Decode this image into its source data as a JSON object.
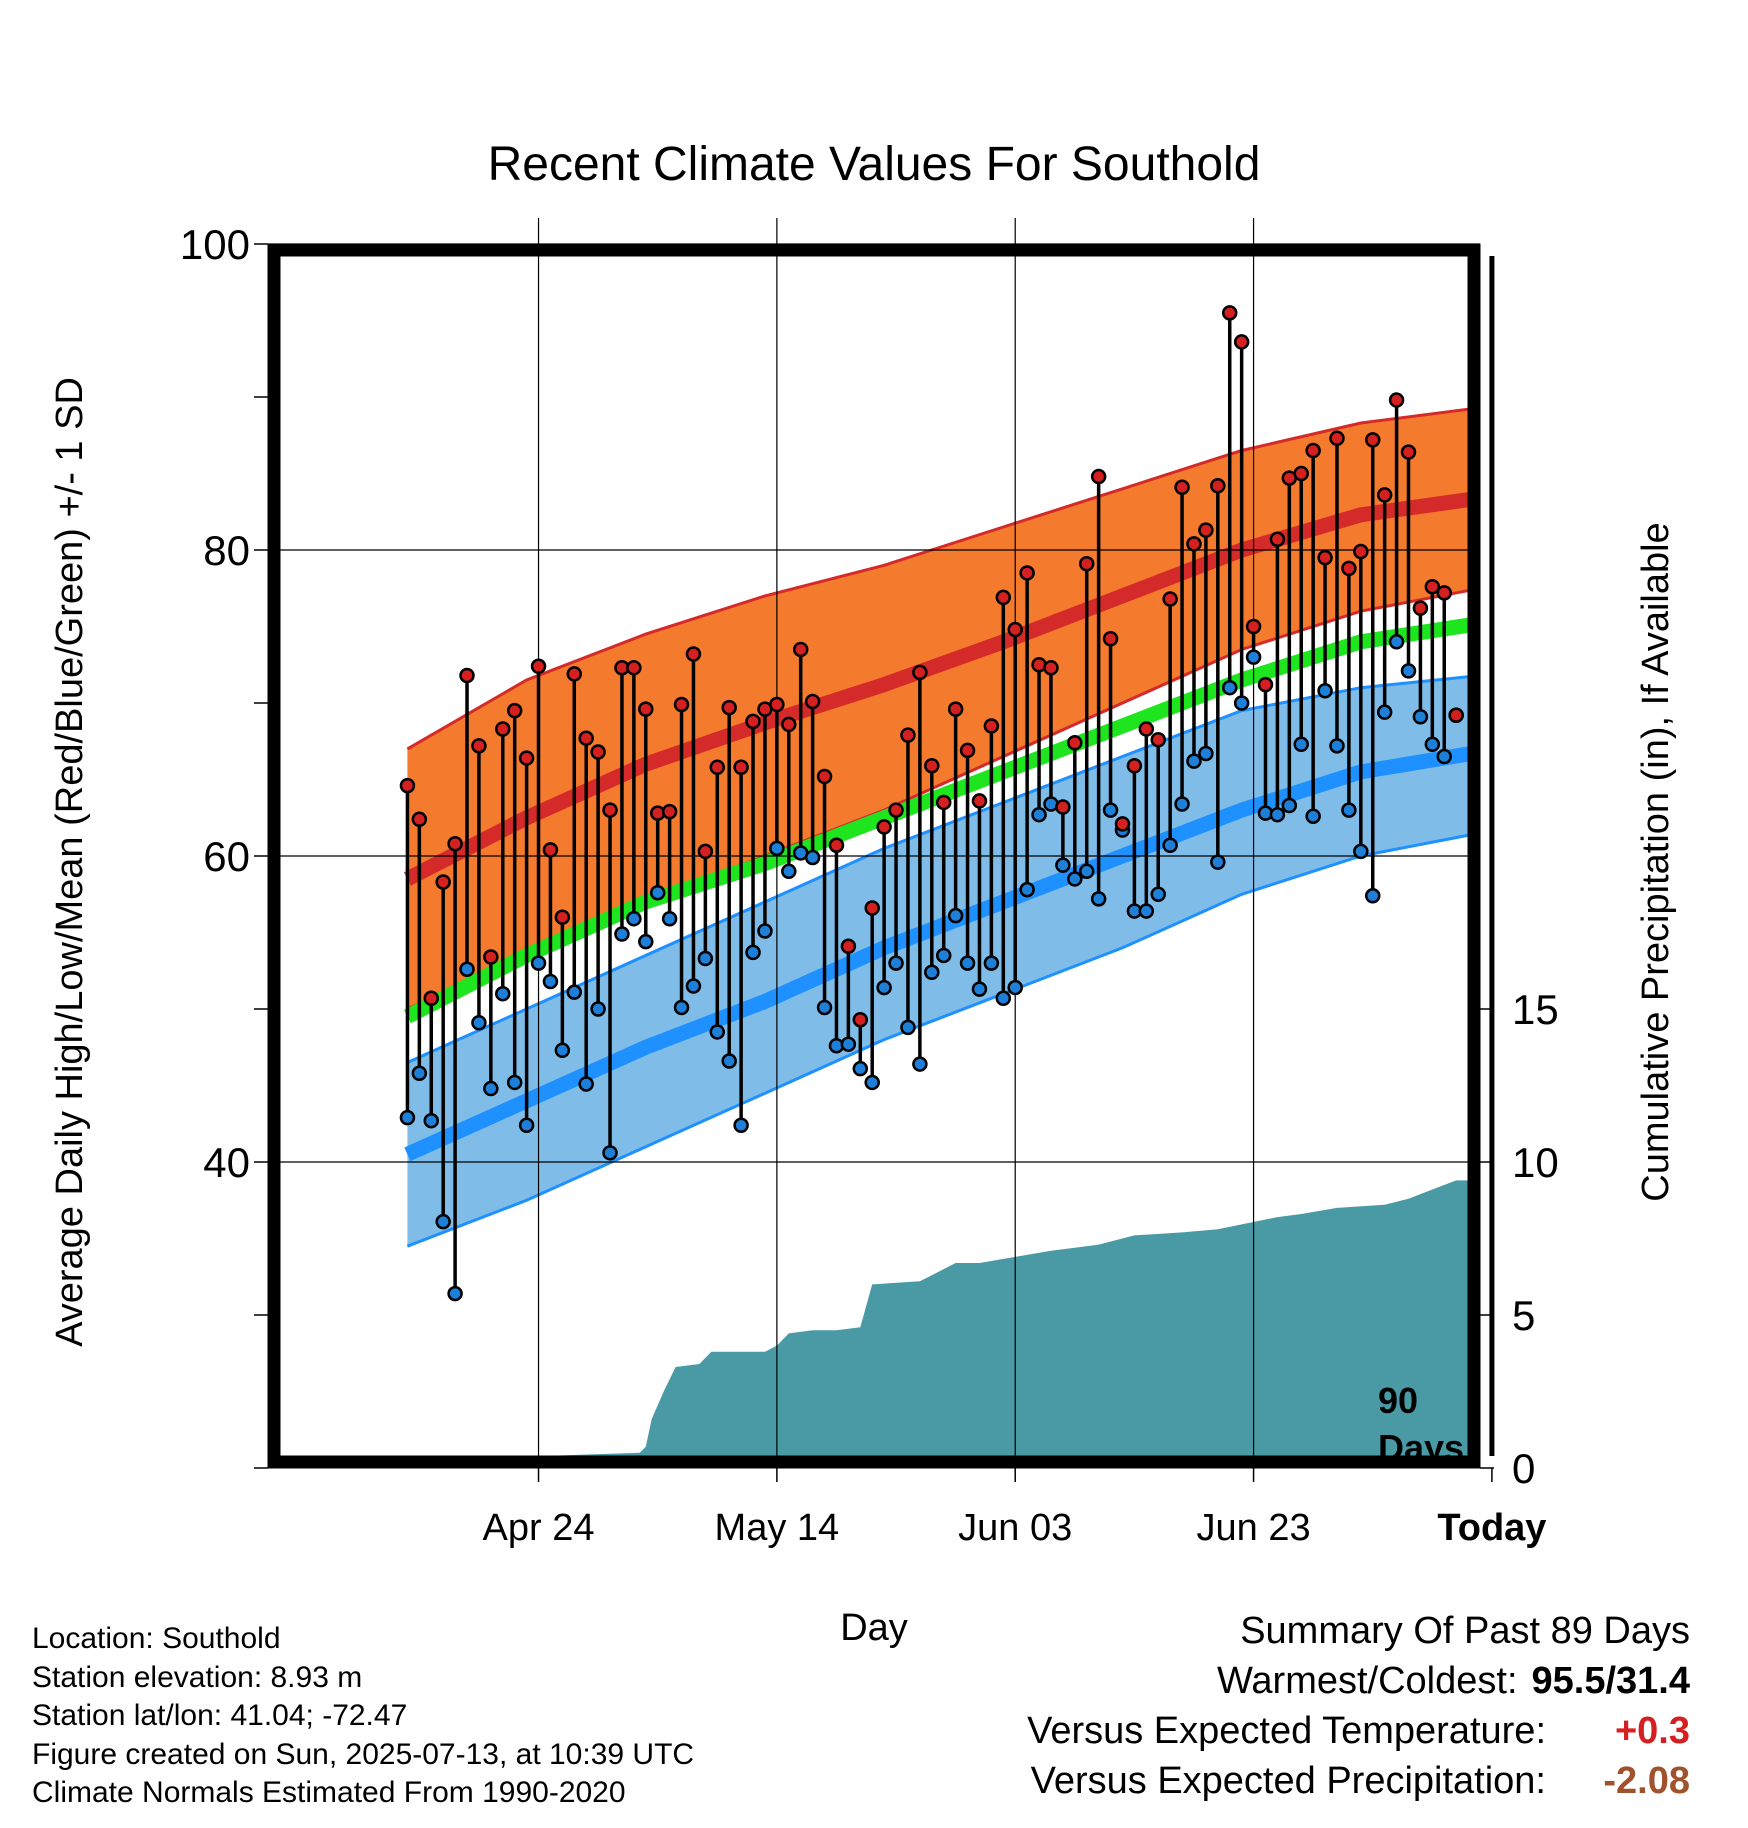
{
  "title": "Recent Climate Values For Southold",
  "y_label": "Average Daily High/Low/Mean (Red/Blue/Green) +/- 1 SD",
  "y2_label": "Cumulative Precipitation (in), If Available",
  "x_label": "Day",
  "today_marker": {
    "line1": "90",
    "line2": "Days"
  },
  "info": {
    "location": "Location: Southold",
    "elevation": "Station elevation: 8.93 m",
    "latlon": "Station lat/lon: 41.04; -72.47",
    "created": "Figure created on Sun, 2025-07-13, at 10:39 UTC",
    "normals": "Climate Normals Estimated From 1990-2020"
  },
  "summary": {
    "heading": "Summary Of Past 89 Days",
    "warm_label": "Warmest/Coldest:",
    "warm_value": "95.5/31.4",
    "temp_label": "Versus Expected Temperature:",
    "temp_value": "+0.3",
    "precip_label": "Versus Expected Precipitation:",
    "precip_value": "-2.08"
  },
  "colors": {
    "high_band": "#f47a2e",
    "high_mean": "#d42a2a",
    "low_band": "#7fbde8",
    "low_mean": "#1e90ff",
    "mean_line": "#1ee51e",
    "precip": "#4a9aa5",
    "high_dot": "#d42020",
    "low_dot": "#1e7fd8"
  },
  "chart_data": {
    "type": "line",
    "x_range": [
      -11.7,
      90
    ],
    "ylim": [
      20,
      100
    ],
    "y2lim": [
      0,
      40
    ],
    "y_ticks": [
      "100",
      "80",
      "60",
      "40"
    ],
    "y2_ticks": [
      "0",
      "5",
      "10",
      "15"
    ],
    "x_ticks": [
      {
        "x": 11,
        "label": "Apr 24"
      },
      {
        "x": 31,
        "label": "May 14"
      },
      {
        "x": 51,
        "label": "Jun 03"
      },
      {
        "x": 71,
        "label": "Jun 23"
      },
      {
        "x": 91,
        "label": "Today"
      }
    ],
    "normals": {
      "x": [
        0,
        10,
        20,
        30,
        40,
        50,
        60,
        70,
        80,
        90,
        99
      ],
      "high_mean": [
        58.5,
        62.5,
        66.0,
        68.7,
        71.2,
        74.0,
        77.0,
        80.0,
        82.3,
        83.4,
        83.4
      ],
      "high_upper": [
        67.0,
        71.5,
        74.5,
        77.0,
        79.0,
        81.5,
        84.0,
        86.5,
        88.3,
        89.3,
        89.3
      ],
      "high_lower": [
        50.0,
        53.5,
        57.0,
        60.0,
        63.0,
        66.5,
        70.0,
        73.5,
        76.0,
        77.5,
        77.8
      ],
      "mean": [
        49.5,
        53.5,
        57.0,
        59.5,
        62.5,
        65.5,
        68.5,
        71.5,
        74.0,
        75.2,
        75.3
      ],
      "low_mean": [
        40.5,
        44.0,
        47.5,
        50.5,
        54.0,
        57.0,
        60.0,
        63.0,
        65.5,
        66.8,
        67.0
      ],
      "low_upper": [
        46.5,
        50.0,
        53.5,
        57.0,
        60.5,
        63.5,
        66.5,
        69.5,
        71.0,
        71.8,
        72.0
      ],
      "low_lower": [
        34.5,
        37.5,
        41.0,
        44.5,
        48.0,
        51.0,
        54.0,
        57.5,
        60.0,
        61.5,
        62.2
      ]
    },
    "daily": {
      "x": [
        0,
        1,
        2,
        3,
        4,
        5,
        6,
        7,
        8,
        9,
        10,
        11,
        12,
        13,
        14,
        15,
        16,
        17,
        18,
        19,
        20,
        21,
        22,
        23,
        24,
        25,
        26,
        27,
        28,
        29,
        30,
        31,
        32,
        33,
        34,
        35,
        36,
        37,
        38,
        39,
        40,
        41,
        42,
        43,
        44,
        45,
        46,
        47,
        48,
        49,
        50,
        51,
        52,
        53,
        54,
        55,
        56,
        57,
        58,
        59,
        60,
        61,
        62,
        63,
        64,
        65,
        66,
        67,
        68,
        69,
        70,
        71,
        72,
        73,
        74,
        75,
        76,
        77,
        78,
        79,
        80,
        81,
        82,
        83,
        84,
        85,
        86,
        87,
        88
      ],
      "high": [
        64.6,
        62.4,
        50.7,
        58.3,
        60.8,
        71.8,
        67.2,
        53.4,
        68.3,
        69.5,
        66.4,
        72.4,
        60.4,
        56.0,
        71.9,
        67.7,
        66.8,
        63.0,
        72.3,
        72.3,
        69.6,
        62.8,
        62.9,
        69.9,
        73.2,
        60.3,
        65.8,
        69.7,
        65.8,
        68.8,
        69.6,
        69.9,
        68.6,
        73.5,
        70.1,
        65.2,
        60.7,
        54.1,
        49.3,
        56.6,
        61.9,
        63.0,
        67.9,
        72.0,
        65.9,
        63.5,
        69.6,
        66.9,
        63.6,
        68.5,
        76.9,
        74.8,
        78.5,
        72.5,
        72.3,
        63.2,
        67.4,
        79.1,
        84.8,
        74.2,
        62.1,
        65.9,
        68.3,
        67.6,
        76.8,
        84.1,
        80.4,
        81.3,
        84.2,
        95.5,
        93.6,
        75.0,
        71.2,
        80.7,
        84.7,
        85.0,
        86.5,
        79.5,
        87.3,
        78.8,
        79.9,
        87.2,
        83.6,
        89.8,
        86.4,
        76.2,
        77.6,
        77.2,
        69.2
      ],
      "low": [
        42.9,
        45.8,
        42.7,
        36.1,
        31.4,
        52.6,
        49.1,
        44.8,
        51.0,
        45.2,
        42.4,
        53.0,
        51.8,
        47.3,
        51.1,
        45.1,
        50.0,
        40.6,
        54.9,
        55.9,
        54.4,
        57.6,
        55.9,
        50.1,
        51.5,
        53.3,
        48.5,
        46.6,
        42.4,
        53.7,
        55.1,
        60.5,
        59.0,
        60.2,
        59.9,
        50.1,
        47.6,
        47.7,
        46.1,
        45.2,
        51.4,
        53.0,
        48.8,
        46.4,
        52.4,
        53.5,
        56.1,
        53.0,
        51.3,
        53.0,
        50.7,
        51.4,
        57.8,
        62.7,
        63.4,
        59.4,
        58.5,
        59.0,
        57.2,
        63.0,
        61.7,
        56.4,
        56.4,
        57.5,
        60.7,
        63.4,
        66.2,
        66.7,
        59.6,
        71.0,
        70.0,
        73.0,
        62.8,
        62.7,
        63.3,
        67.3,
        62.6,
        70.8,
        67.2,
        63.0,
        60.3,
        57.4,
        69.4,
        74.0,
        72.1,
        69.1,
        67.3,
        66.5,
        69.2
      ]
    },
    "precip": {
      "x": [
        0,
        11.5,
        12,
        19.5,
        20,
        20.5,
        21.5,
        22.5,
        24.5,
        25.5,
        30,
        31,
        32,
        34,
        36,
        38,
        39,
        43,
        44,
        45,
        46,
        48,
        51,
        54,
        56,
        58,
        61,
        65,
        68,
        73,
        75,
        78,
        82,
        84,
        86,
        88,
        89
      ],
      "values": [
        0,
        0,
        0.4,
        0.5,
        0.7,
        1.6,
        2.5,
        3.3,
        3.4,
        3.8,
        3.8,
        4.0,
        4.4,
        4.5,
        4.5,
        4.6,
        6.0,
        6.1,
        6.3,
        6.5,
        6.7,
        6.7,
        6.9,
        7.1,
        7.2,
        7.3,
        7.6,
        7.7,
        7.8,
        8.2,
        8.3,
        8.5,
        8.6,
        8.8,
        9.1,
        9.4,
        9.4
      ]
    }
  }
}
